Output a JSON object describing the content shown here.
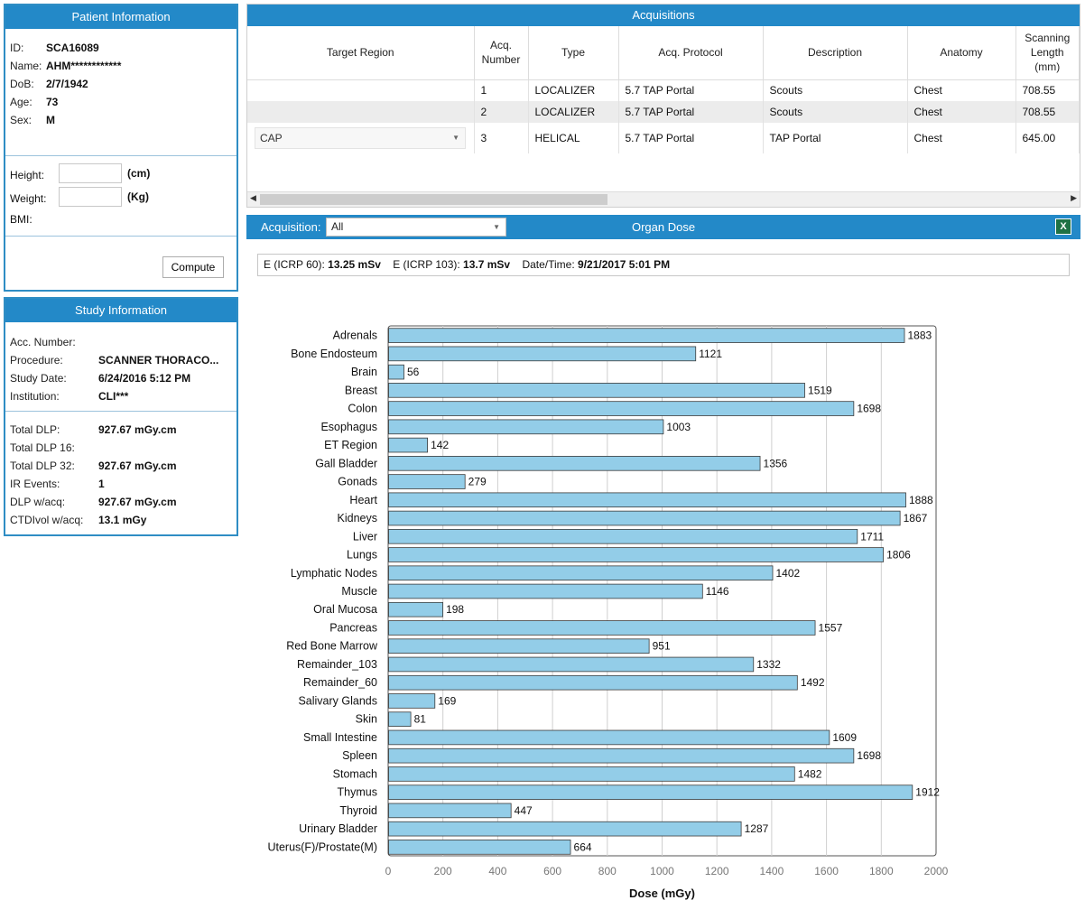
{
  "patient": {
    "header": "Patient Information",
    "fields": [
      {
        "label": "ID:",
        "value": "SCA16089"
      },
      {
        "label": "Name:",
        "value": "AHM************"
      },
      {
        "label": "DoB:",
        "value": "2/7/1942"
      },
      {
        "label": "Age:",
        "value": "73"
      },
      {
        "label": "Sex:",
        "value": "M"
      }
    ],
    "height_label": "Height:",
    "height_unit": "(cm)",
    "height_value": "",
    "weight_label": "Weight:",
    "weight_unit": "(Kg)",
    "weight_value": "",
    "bmi_label": "BMI:",
    "compute_label": "Compute"
  },
  "study": {
    "header": "Study Information",
    "fields": [
      {
        "label": "Acc. Number:",
        "value": ""
      },
      {
        "label": "Procedure:",
        "value": "SCANNER THORACO..."
      },
      {
        "label": "Study Date:",
        "value": "6/24/2016 5:12 PM"
      },
      {
        "label": "Institution:",
        "value": "CLI***"
      }
    ],
    "dose_fields": [
      {
        "label": "Total DLP:",
        "value": "927.67 mGy.cm"
      },
      {
        "label": "Total DLP 16:",
        "value": ""
      },
      {
        "label": "Total DLP 32:",
        "value": "927.67 mGy.cm"
      },
      {
        "label": "IR Events:",
        "value": "1"
      },
      {
        "label": "DLP w/acq:",
        "value": "927.67 mGy.cm"
      },
      {
        "label": "CTDIvol w/acq:",
        "value": "13.1 mGy"
      }
    ]
  },
  "acquisitions": {
    "header": "Acquisitions",
    "columns": [
      "Target Region",
      "Acq. Number",
      "Type",
      "Acq. Protocol",
      "Description",
      "Anatomy",
      "Scanning Length (mm)"
    ],
    "rows": [
      {
        "region": "",
        "number": "1",
        "type": "LOCALIZER",
        "protocol": "5.7 TAP Portal",
        "description": "Scouts",
        "anatomy": "Chest",
        "length": "708.55"
      },
      {
        "region": "",
        "number": "2",
        "type": "LOCALIZER",
        "protocol": "5.7 TAP Portal",
        "description": "Scouts",
        "anatomy": "Chest",
        "length": "708.55"
      },
      {
        "region": "CAP",
        "number": "3",
        "type": "HELICAL",
        "protocol": "5.7 TAP Portal",
        "description": "TAP Portal",
        "anatomy": "Chest",
        "length": "645.00"
      }
    ]
  },
  "organ_dose": {
    "acq_label": "Acquisition:",
    "acq_selected": "All",
    "title": "Organ Dose",
    "excel_icon_glyph": "X",
    "e60_label": "E (ICRP 60):",
    "e60_value": "13.25 mSv",
    "e103_label": "E (ICRP 103):",
    "e103_value": "13.7 mSv",
    "datetime_label": "Date/Time:",
    "datetime_value": "9/21/2017 5:01 PM"
  },
  "chart_data": {
    "type": "bar",
    "orientation": "horizontal",
    "xlabel": "Dose (mGy)",
    "ylabel": "",
    "xlim": [
      0,
      2000
    ],
    "xticks": [
      0,
      200,
      400,
      600,
      800,
      1000,
      1200,
      1400,
      1600,
      1800,
      2000
    ],
    "grid": true,
    "bar_color": "#93cde8",
    "categories": [
      "Adrenals",
      "Bone Endosteum",
      "Brain",
      "Breast",
      "Colon",
      "Esophagus",
      "ET Region",
      "Gall Bladder",
      "Gonads",
      "Heart",
      "Kidneys",
      "Liver",
      "Lungs",
      "Lymphatic Nodes",
      "Muscle",
      "Oral Mucosa",
      "Pancreas",
      "Red Bone Marrow",
      "Remainder_103",
      "Remainder_60",
      "Salivary Glands",
      "Skin",
      "Small Intestine",
      "Spleen",
      "Stomach",
      "Thymus",
      "Thyroid",
      "Urinary Bladder",
      "Uterus(F)/Prostate(M)"
    ],
    "values": [
      1883,
      1121,
      56,
      1519,
      1698,
      1003,
      142,
      1356,
      279,
      1888,
      1867,
      1711,
      1806,
      1402,
      1146,
      198,
      1557,
      951,
      1332,
      1492,
      169,
      81,
      1609,
      1698,
      1482,
      1912,
      447,
      1287,
      664
    ]
  }
}
